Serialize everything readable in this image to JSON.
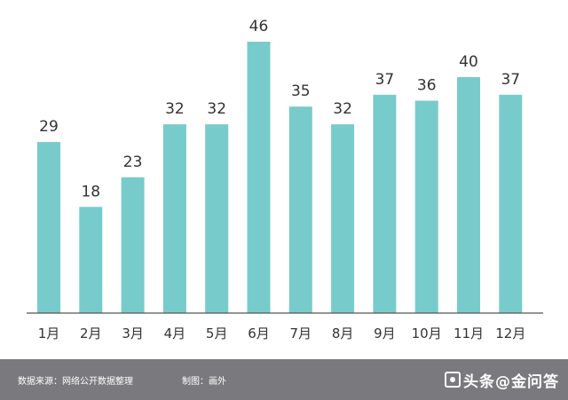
{
  "chart_data": {
    "type": "bar",
    "categories": [
      "1月",
      "2月",
      "3月",
      "4月",
      "5月",
      "6月",
      "7月",
      "8月",
      "9月",
      "10月",
      "11月",
      "12月"
    ],
    "values": [
      29,
      18,
      23,
      32,
      32,
      46,
      35,
      32,
      37,
      36,
      40,
      37
    ],
    "ylim": [
      0,
      46
    ],
    "grid": false,
    "bar_color": "#78cbcb",
    "axis_color": "#555555",
    "data_labels": true
  },
  "footer": {
    "source": "数据来源：网络公开数据整理",
    "maker": "制图：画外",
    "watermark": "头条@金问答",
    "background": "#7a7a7e"
  }
}
